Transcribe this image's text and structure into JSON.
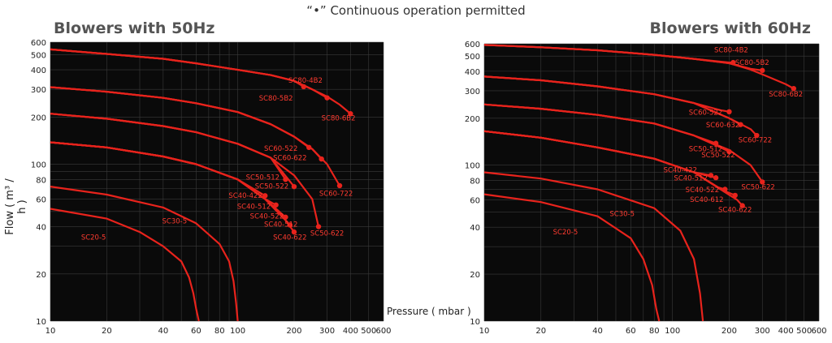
{
  "header": {
    "note": "“•”  Continuous operation permitted"
  },
  "ylabel": "Flow ( m³ / h )",
  "xlabel": "Pressure ( mbar )",
  "chart_data": [
    {
      "type": "line",
      "title": "Blowers with 50Hz",
      "x_scale": "log",
      "y_scale": "log",
      "xlim": [
        10,
        600
      ],
      "ylim": [
        10,
        600
      ],
      "x_ticks": [
        10,
        20,
        40,
        60,
        80,
        100,
        200,
        300,
        400,
        500,
        600
      ],
      "y_ticks": [
        10,
        20,
        40,
        60,
        80,
        100,
        200,
        300,
        400,
        500,
        600
      ],
      "colors": {
        "background": "#0a0a0a",
        "grid": "#3a3a3a",
        "curve": "#e8231c",
        "label": "#ff3b30"
      },
      "series": [
        {
          "name": "SC20-5",
          "x": [
            10,
            20,
            30,
            40,
            50,
            55,
            58,
            60,
            62
          ],
          "y": [
            52,
            45,
            37,
            30,
            24,
            19,
            15,
            12,
            10
          ],
          "dot": false,
          "label_at": [
            17,
            33
          ]
        },
        {
          "name": "SC30-5",
          "x": [
            10,
            20,
            40,
            60,
            80,
            90,
            95,
            98,
            100
          ],
          "y": [
            72,
            64,
            53,
            42,
            31,
            24,
            18,
            13,
            10
          ],
          "dot": false,
          "label_at": [
            46,
            42
          ]
        },
        {
          "name": "SC40-622",
          "x": [
            10,
            20,
            40,
            60,
            100,
            140,
            180,
            200
          ],
          "y": [
            138,
            128,
            112,
            100,
            80,
            60,
            44,
            37
          ],
          "dot": true,
          "label_at": [
            190,
            33
          ]
        },
        {
          "name": "SC40-512",
          "x": [
            10,
            20,
            40,
            60,
            100,
            140,
            180,
            190
          ],
          "y": [
            138,
            128,
            112,
            100,
            80,
            60,
            44,
            41
          ],
          "dot": true,
          "label_at": [
            170,
            40
          ]
        },
        {
          "name": "SC40-522",
          "x": [
            10,
            20,
            40,
            60,
            100,
            140,
            180
          ],
          "y": [
            138,
            128,
            112,
            100,
            80,
            60,
            46
          ],
          "dot": true,
          "label_at": [
            143,
            45
          ]
        },
        {
          "name": "SC40-512",
          "x": [
            10,
            20,
            40,
            60,
            100,
            140,
            160
          ],
          "y": [
            138,
            128,
            112,
            100,
            80,
            60,
            55
          ],
          "dot": true,
          "label_at": [
            122,
            52
          ]
        },
        {
          "name": "SC40-422",
          "x": [
            10,
            20,
            40,
            60,
            100,
            140
          ],
          "y": [
            138,
            128,
            112,
            100,
            80,
            63
          ],
          "dot": true,
          "label_at": [
            110,
            61
          ]
        },
        {
          "name": "SC50-622",
          "x": [
            10,
            20,
            40,
            60,
            100,
            150,
            200,
            250,
            270
          ],
          "y": [
            210,
            195,
            175,
            160,
            135,
            110,
            85,
            60,
            40
          ],
          "dot": true,
          "label_at": [
            300,
            35
          ]
        },
        {
          "name": "SC50-522",
          "x": [
            10,
            20,
            40,
            60,
            100,
            150,
            200
          ],
          "y": [
            210,
            195,
            175,
            160,
            135,
            110,
            72
          ],
          "dot": true,
          "label_at": [
            152,
            70
          ]
        },
        {
          "name": "SC50-512",
          "x": [
            10,
            20,
            40,
            60,
            100,
            150,
            180
          ],
          "y": [
            210,
            195,
            175,
            160,
            135,
            110,
            80
          ],
          "dot": true,
          "label_at": [
            136,
            80
          ]
        },
        {
          "name": "SC60-722",
          "x": [
            10,
            20,
            40,
            60,
            100,
            150,
            200,
            250,
            300,
            350
          ],
          "y": [
            310,
            290,
            265,
            245,
            215,
            180,
            150,
            125,
            100,
            73
          ],
          "dot": true,
          "label_at": [
            335,
            63
          ]
        },
        {
          "name": "SC60-622",
          "x": [
            10,
            20,
            40,
            60,
            100,
            150,
            200,
            250,
            280
          ],
          "y": [
            310,
            290,
            265,
            245,
            215,
            180,
            150,
            125,
            108
          ],
          "dot": true,
          "label_at": [
            190,
            106
          ]
        },
        {
          "name": "SC60-522",
          "x": [
            10,
            20,
            40,
            60,
            100,
            150,
            200,
            240
          ],
          "y": [
            310,
            290,
            265,
            245,
            215,
            180,
            150,
            128
          ],
          "dot": true,
          "label_at": [
            170,
            122
          ]
        },
        {
          "name": "SC80-6B2",
          "x": [
            10,
            20,
            40,
            60,
            100,
            150,
            200,
            250,
            300,
            350,
            400
          ],
          "y": [
            540,
            505,
            470,
            440,
            400,
            370,
            340,
            300,
            270,
            240,
            210
          ],
          "dot": true,
          "label_at": [
            345,
            190
          ]
        },
        {
          "name": "SC80-5B2",
          "x": [
            10,
            20,
            40,
            60,
            100,
            150,
            200,
            250,
            300
          ],
          "y": [
            540,
            505,
            470,
            440,
            400,
            370,
            340,
            300,
            265
          ],
          "dot": true,
          "label_at": [
            160,
            255
          ]
        },
        {
          "name": "SC80-4B2",
          "x": [
            10,
            20,
            40,
            60,
            100,
            150,
            200,
            225
          ],
          "y": [
            540,
            505,
            470,
            440,
            400,
            370,
            340,
            312
          ],
          "dot": true,
          "label_at": [
            230,
            330
          ]
        }
      ]
    },
    {
      "type": "line",
      "title": "Blowers with 60Hz",
      "x_scale": "log",
      "y_scale": "log",
      "xlim": [
        10,
        600
      ],
      "ylim": [
        10,
        600
      ],
      "x_ticks": [
        10,
        20,
        40,
        60,
        80,
        100,
        200,
        300,
        400,
        500,
        600
      ],
      "y_ticks": [
        10,
        20,
        40,
        60,
        80,
        100,
        200,
        300,
        400,
        500,
        600
      ],
      "colors": {
        "background": "#0a0a0a",
        "grid": "#3a3a3a",
        "curve": "#e8231c",
        "label": "#ff3b30"
      },
      "series": [
        {
          "name": "SC20-5",
          "x": [
            10,
            20,
            40,
            60,
            70,
            78,
            82,
            85
          ],
          "y": [
            65,
            58,
            47,
            34,
            25,
            17,
            12,
            10
          ],
          "dot": false,
          "label_at": [
            27,
            36
          ]
        },
        {
          "name": "SC30-5",
          "x": [
            10,
            20,
            40,
            80,
            110,
            130,
            140,
            145
          ],
          "y": [
            90,
            82,
            70,
            53,
            38,
            25,
            15,
            10
          ],
          "dot": false,
          "label_at": [
            54,
            47
          ]
        },
        {
          "name": "SC40-622",
          "x": [
            10,
            20,
            40,
            80,
            130,
            180,
            220,
            235
          ],
          "y": [
            165,
            150,
            130,
            110,
            90,
            70,
            60,
            55
          ],
          "dot": true,
          "label_at": [
            215,
            50
          ]
        },
        {
          "name": "SC40-612",
          "x": [
            10,
            20,
            40,
            80,
            130,
            180,
            215
          ],
          "y": [
            165,
            150,
            130,
            110,
            90,
            70,
            64
          ],
          "dot": true,
          "label_at": [
            152,
            58
          ]
        },
        {
          "name": "SC40-522",
          "x": [
            10,
            20,
            40,
            80,
            130,
            175,
            190
          ],
          "y": [
            165,
            150,
            130,
            110,
            90,
            72,
            70
          ],
          "dot": true,
          "label_at": [
            144,
            67
          ]
        },
        {
          "name": "SC40-512",
          "x": [
            10,
            20,
            40,
            80,
            130,
            170
          ],
          "y": [
            165,
            150,
            130,
            110,
            90,
            83
          ],
          "dot": true,
          "label_at": [
            125,
            80
          ]
        },
        {
          "name": "SC40-422",
          "x": [
            10,
            20,
            40,
            80,
            130,
            160
          ],
          "y": [
            165,
            150,
            130,
            110,
            90,
            86
          ],
          "dot": true,
          "label_at": [
            110,
            90
          ]
        },
        {
          "name": "SC50-622",
          "x": [
            10,
            20,
            40,
            80,
            130,
            200,
            260,
            300
          ],
          "y": [
            245,
            230,
            210,
            185,
            155,
            125,
            100,
            78
          ],
          "dot": true,
          "label_at": [
            285,
            70
          ]
        },
        {
          "name": "SC50-522",
          "x": [
            10,
            20,
            40,
            80,
            130,
            180,
            200
          ],
          "y": [
            245,
            230,
            210,
            185,
            155,
            130,
            122
          ],
          "dot": true,
          "label_at": [
            175,
            112
          ]
        },
        {
          "name": "SC50-512",
          "x": [
            10,
            20,
            40,
            80,
            130,
            170
          ],
          "y": [
            245,
            230,
            210,
            185,
            155,
            138
          ],
          "dot": true,
          "label_at": [
            150,
            123
          ]
        },
        {
          "name": "SC60-722",
          "x": [
            10,
            20,
            40,
            80,
            130,
            200,
            260,
            280
          ],
          "y": [
            370,
            350,
            320,
            285,
            250,
            200,
            170,
            155
          ],
          "dot": true,
          "label_at": [
            275,
            140
          ]
        },
        {
          "name": "SC60-632",
          "x": [
            10,
            20,
            40,
            80,
            130,
            200,
            230
          ],
          "y": [
            370,
            350,
            320,
            285,
            250,
            200,
            182
          ],
          "dot": true,
          "label_at": [
            185,
            175
          ]
        },
        {
          "name": "SC60-522",
          "x": [
            10,
            20,
            40,
            80,
            130,
            180,
            200
          ],
          "y": [
            370,
            350,
            320,
            285,
            250,
            225,
            220
          ],
          "dot": true,
          "label_at": [
            150,
            210
          ]
        },
        {
          "name": "SC80-6B2",
          "x": [
            10,
            20,
            40,
            80,
            130,
            200,
            260,
            320,
            400,
            440
          ],
          "y": [
            590,
            570,
            545,
            510,
            480,
            450,
            410,
            370,
            330,
            310
          ],
          "dot": true,
          "label_at": [
            400,
            275
          ]
        },
        {
          "name": "SC80-5B2",
          "x": [
            10,
            20,
            40,
            80,
            130,
            200,
            260,
            300
          ],
          "y": [
            590,
            570,
            545,
            510,
            480,
            450,
            415,
            405
          ],
          "dot": true,
          "label_at": [
            265,
            440
          ]
        },
        {
          "name": "SC80-4B2",
          "x": [
            10,
            20,
            40,
            80,
            130,
            200,
            210
          ],
          "y": [
            590,
            570,
            545,
            510,
            480,
            455,
            455
          ],
          "dot": true,
          "label_at": [
            205,
            530
          ]
        }
      ]
    }
  ]
}
